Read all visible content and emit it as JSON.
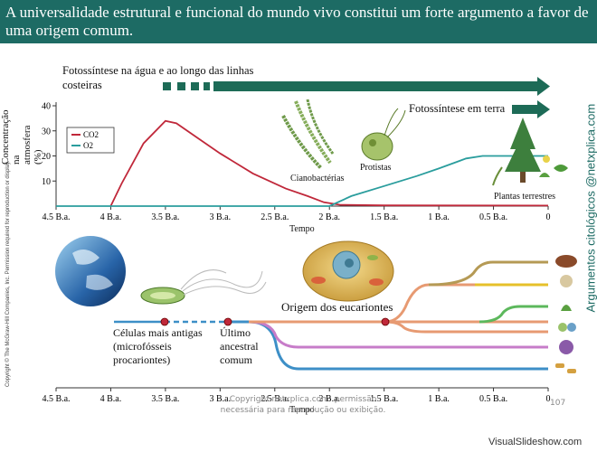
{
  "header": {
    "title": "A universalidade estrutural e funcional do mundo vivo constitui um forte argumento a favor de uma origem comum."
  },
  "chart_data": {
    "type": "line",
    "title": "",
    "xlabel": "Tempo",
    "ylabel": "Concentração na atmosfera (%)",
    "x_ticks": [
      "4.5 B.a.",
      "4 B.a.",
      "3.5 B.a.",
      "3 B.a.",
      "2.5 B.a.",
      "2 B.a.",
      "1.5 B.a.",
      "1 B.a.",
      "0.5 B.a.",
      "0"
    ],
    "y_ticks": [
      "10",
      "20",
      "30",
      "40"
    ],
    "ylim": [
      0,
      40
    ],
    "xlim": [
      4.5,
      0
    ],
    "legend_placement": "top-left",
    "legend": [
      "CO2",
      "O2"
    ],
    "series": [
      {
        "name": "CO2",
        "color": "#c0283a",
        "points": [
          [
            4.0,
            0
          ],
          [
            3.9,
            9
          ],
          [
            3.7,
            25
          ],
          [
            3.5,
            34
          ],
          [
            3.4,
            33
          ],
          [
            3.2,
            27
          ],
          [
            3.0,
            21
          ],
          [
            2.7,
            13
          ],
          [
            2.4,
            7
          ],
          [
            2.2,
            4
          ],
          [
            2.05,
            1.5
          ],
          [
            1.9,
            0.5
          ],
          [
            1.5,
            0.3
          ],
          [
            0,
            0.2
          ]
        ]
      },
      {
        "name": "O2",
        "color": "#2a9d9d",
        "points": [
          [
            4.5,
            0
          ],
          [
            2.0,
            0
          ],
          [
            1.8,
            4
          ],
          [
            1.5,
            8
          ],
          [
            1.2,
            12
          ],
          [
            1.0,
            15
          ],
          [
            0.75,
            19
          ],
          [
            0.6,
            20
          ],
          [
            0,
            20
          ]
        ]
      }
    ]
  },
  "top_timeline": {
    "arrow_water_label": "Fotossíntese na água e ao longo das linhas costeiras",
    "arrow_land_label": "Fotossíntese em terra",
    "organism_labels": {
      "cyanobacteria": "Cianobactérias",
      "protists": "Protistas",
      "land_plants": "Plantas terrestres"
    }
  },
  "bottom_timeline": {
    "x_ticks": [
      "4.5 B.a.",
      "4 B.a.",
      "3.5 B.a.",
      "3 B.a.",
      "2.5 B.a.",
      "2 B.a.",
      "1.5 B.a.",
      "1 B.a.",
      "0.5 B.a.",
      "0"
    ],
    "xlabel": "Tempo",
    "oldest_cells_label": "Células mais antigas (microfósseis procariontes)",
    "last_ancestor_label": "Último ancestral comum",
    "eukaryote_origin_label": "Origem dos eucariontes",
    "colors": {
      "tree_blue": "#3d8fc7",
      "tree_orange": "#e79a72",
      "tree_purple": "#c77cc9",
      "tree_green": "#5cb85c",
      "tree_yellow": "#e6c02a",
      "tree_olive": "#b59a55",
      "arrow_green": "#1d6b57"
    }
  },
  "credits": {
    "copyright_left": "Copyright © The McGraw-Hill Companies, Inc. Permission required for reproduction or display.",
    "side_credit": "Argumentos citológicos @netxplica.com",
    "footer_note": "Copyright netxplica.com: permissão necessária para reprodução ou exibição.",
    "page_number": "107",
    "watermark": "VisualSlideshow.com"
  }
}
